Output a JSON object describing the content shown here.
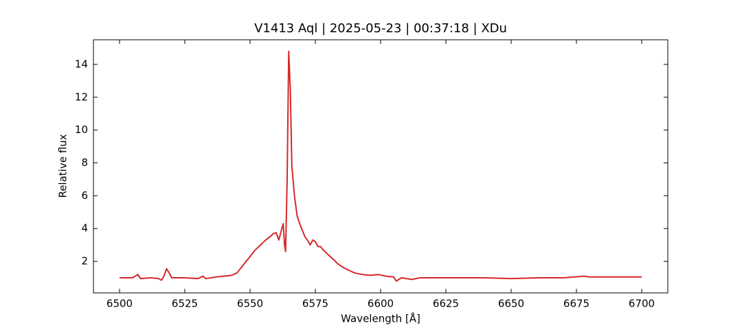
{
  "chart_data": {
    "type": "line",
    "title": "V1413 Aql | 2025-05-23 | 00:37:18 | XDu",
    "xlabel": "Wavelength [Å]",
    "ylabel": "Relative flux",
    "color": "#d62728",
    "x": [
      6500,
      6505,
      6507,
      6508,
      6512,
      6515,
      6516,
      6517,
      6518,
      6519,
      6520,
      6525,
      6530,
      6532,
      6533,
      6537,
      6540,
      6543,
      6545,
      6547,
      6550,
      6552,
      6554,
      6556,
      6558,
      6559,
      6560,
      6561,
      6562,
      6562.7,
      6563.2,
      6563.6,
      6564.2,
      6564.8,
      6565.4,
      6566,
      6567,
      6568,
      6569,
      6570,
      6571,
      6572,
      6573,
      6574,
      6575,
      6576,
      6577,
      6578,
      6580,
      6582,
      6584,
      6586,
      6588,
      6590,
      6593,
      6596,
      6599,
      6602,
      6605,
      6606,
      6608,
      6612,
      6615,
      6620,
      6630,
      6640,
      6650,
      6660,
      6670,
      6678,
      6680,
      6690,
      6700
    ],
    "values": [
      1.0,
      1.0,
      1.2,
      0.95,
      1.0,
      0.95,
      0.85,
      1.1,
      1.55,
      1.3,
      1.0,
      1.0,
      0.95,
      1.1,
      0.95,
      1.05,
      1.1,
      1.15,
      1.3,
      1.7,
      2.3,
      2.7,
      3.0,
      3.3,
      3.55,
      3.7,
      3.75,
      3.3,
      3.9,
      4.3,
      3.0,
      2.6,
      7.0,
      14.8,
      12.5,
      7.8,
      6.0,
      4.8,
      4.3,
      3.9,
      3.5,
      3.3,
      3.0,
      3.3,
      3.2,
      2.9,
      2.9,
      2.7,
      2.4,
      2.1,
      1.8,
      1.6,
      1.45,
      1.3,
      1.2,
      1.15,
      1.2,
      1.1,
      1.05,
      0.8,
      1.0,
      0.9,
      1.0,
      1.0,
      1.0,
      1.0,
      0.95,
      1.0,
      1.0,
      1.1,
      1.05,
      1.05,
      1.05
    ],
    "xlim": [
      6490,
      6710
    ],
    "xticks": [
      6500,
      6525,
      6550,
      6575,
      6600,
      6625,
      6650,
      6675,
      6700
    ],
    "ylim": [
      0.08,
      15.5
    ],
    "yticks": [
      2,
      4,
      6,
      8,
      10,
      12,
      14
    ]
  }
}
